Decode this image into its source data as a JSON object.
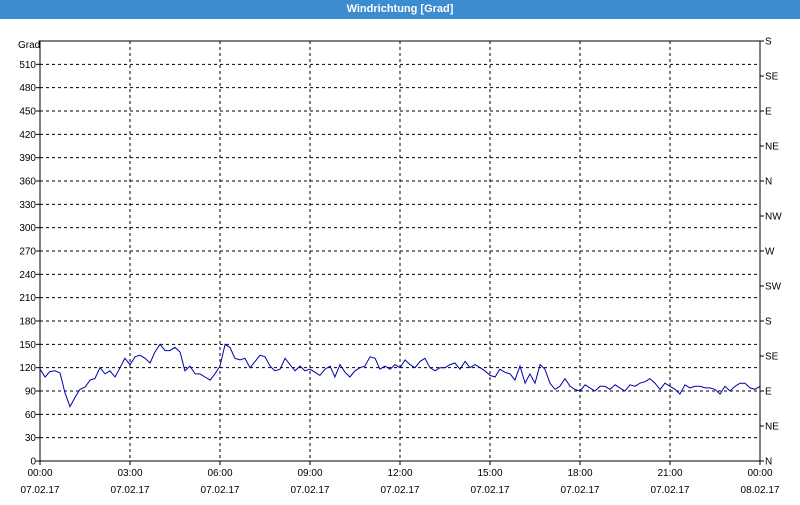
{
  "window": {
    "title": "Windrichtung [Grad]"
  },
  "chart_data": {
    "type": "line",
    "title": "Windrichtung [Grad]",
    "ylabel": "Grad",
    "ylim": [
      0,
      540
    ],
    "xlim_hours": [
      0,
      24
    ],
    "grid": true,
    "y_ticks": [
      0,
      30,
      60,
      90,
      120,
      150,
      180,
      210,
      240,
      270,
      300,
      330,
      360,
      390,
      420,
      450,
      480,
      510
    ],
    "x_ticks": [
      {
        "time": "00:00",
        "date": "07.02.17"
      },
      {
        "time": "03:00",
        "date": "07.02.17"
      },
      {
        "time": "06:00",
        "date": "07.02.17"
      },
      {
        "time": "09:00",
        "date": "07.02.17"
      },
      {
        "time": "12:00",
        "date": "07.02.17"
      },
      {
        "time": "15:00",
        "date": "07.02.17"
      },
      {
        "time": "18:00",
        "date": "07.02.17"
      },
      {
        "time": "21:00",
        "date": "07.02.17"
      },
      {
        "time": "00:00",
        "date": "08.02.17"
      }
    ],
    "right_axis_labels": [
      "N",
      "NE",
      "E",
      "SE",
      "S",
      "SW",
      "W",
      "NW",
      "N",
      "NE",
      "E",
      "SE",
      "S"
    ],
    "right_axis_step": 45,
    "series": [
      {
        "color": "#0000aa",
        "x": [
          0.0,
          0.17,
          0.33,
          0.5,
          0.67,
          0.83,
          1.0,
          1.17,
          1.33,
          1.5,
          1.67,
          1.83,
          2.0,
          2.17,
          2.33,
          2.5,
          2.67,
          2.83,
          3.0,
          3.17,
          3.33,
          3.5,
          3.67,
          3.83,
          4.0,
          4.17,
          4.33,
          4.5,
          4.67,
          4.83,
          5.0,
          5.17,
          5.33,
          5.5,
          5.67,
          5.83,
          6.0,
          6.17,
          6.33,
          6.5,
          6.67,
          6.83,
          7.0,
          7.17,
          7.33,
          7.5,
          7.67,
          7.83,
          8.0,
          8.17,
          8.33,
          8.5,
          8.67,
          8.83,
          9.0,
          9.17,
          9.33,
          9.5,
          9.67,
          9.83,
          10.0,
          10.17,
          10.33,
          10.5,
          10.67,
          10.83,
          11.0,
          11.17,
          11.33,
          11.5,
          11.67,
          11.83,
          12.0,
          12.17,
          12.33,
          12.5,
          12.67,
          12.83,
          13.0,
          13.17,
          13.33,
          13.5,
          13.67,
          13.83,
          14.0,
          14.17,
          14.33,
          14.5,
          14.67,
          14.83,
          15.0,
          15.17,
          15.33,
          15.5,
          15.67,
          15.83,
          16.0,
          16.17,
          16.33,
          16.5,
          16.67,
          16.83,
          17.0,
          17.17,
          17.33,
          17.5,
          17.67,
          17.83,
          18.0,
          18.17,
          18.33,
          18.5,
          18.67,
          18.83,
          19.0,
          19.17,
          19.33,
          19.5,
          19.67,
          19.83,
          20.0,
          20.17,
          20.33,
          20.5,
          20.67,
          20.83,
          21.0,
          21.17,
          21.33,
          21.5,
          21.67,
          21.83,
          22.0,
          22.17,
          22.33,
          22.5,
          22.67,
          22.83,
          23.0,
          23.17,
          23.33,
          23.5,
          23.67,
          23.83,
          24.0
        ],
        "values": [
          118,
          108,
          115,
          116,
          113,
          88,
          70,
          82,
          92,
          95,
          104,
          106,
          120,
          112,
          116,
          108,
          120,
          132,
          124,
          134,
          136,
          132,
          126,
          140,
          150,
          142,
          142,
          146,
          140,
          116,
          122,
          112,
          112,
          108,
          104,
          112,
          122,
          150,
          146,
          132,
          130,
          132,
          120,
          128,
          136,
          134,
          122,
          116,
          118,
          132,
          124,
          116,
          122,
          116,
          118,
          114,
          110,
          118,
          122,
          108,
          124,
          114,
          108,
          116,
          120,
          122,
          134,
          132,
          118,
          122,
          118,
          124,
          120,
          130,
          124,
          120,
          128,
          132,
          120,
          116,
          120,
          120,
          124,
          126,
          118,
          128,
          120,
          124,
          120,
          116,
          110,
          108,
          118,
          114,
          112,
          104,
          122,
          100,
          112,
          100,
          124,
          118,
          100,
          92,
          96,
          106,
          96,
          92,
          90,
          98,
          94,
          90,
          96,
          96,
          92,
          98,
          94,
          90,
          98,
          96,
          100,
          102,
          106,
          100,
          92,
          100,
          96,
          92,
          86,
          98,
          94,
          96,
          96,
          94,
          94,
          92,
          86,
          96,
          90,
          96,
          100,
          100,
          94,
          92,
          96
        ]
      }
    ]
  }
}
